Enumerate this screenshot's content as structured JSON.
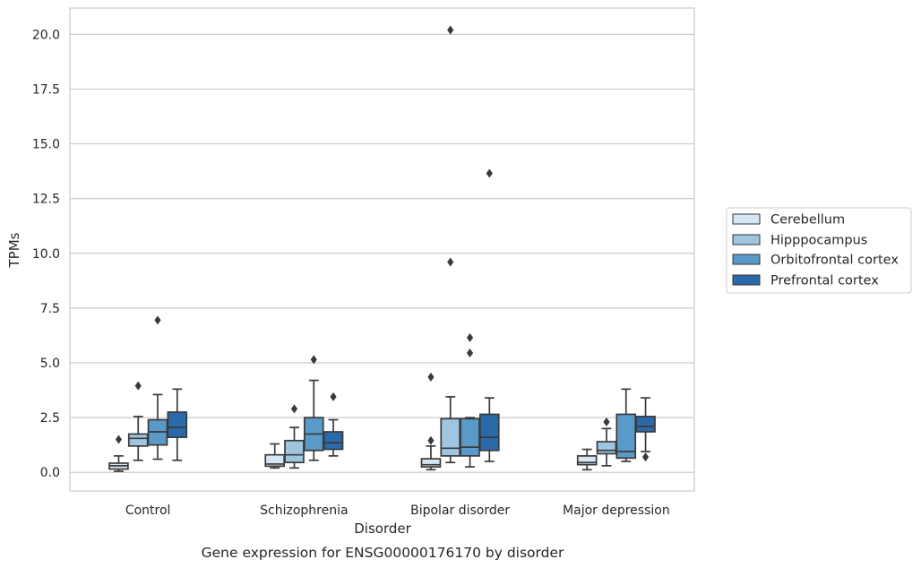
{
  "chart_data": {
    "type": "box",
    "caption": "Gene expression for ENSG00000176170 by disorder",
    "xlabel": "Disorder",
    "ylabel": "TPMs",
    "ylim": [
      -0.85,
      21.2
    ],
    "yticks": [
      0.0,
      2.5,
      5.0,
      7.5,
      10.0,
      12.5,
      15.0,
      17.5,
      20.0
    ],
    "ytick_labels": [
      "0.0",
      "2.5",
      "5.0",
      "7.5",
      "10.0",
      "12.5",
      "15.0",
      "17.5",
      "20.0"
    ],
    "grid": "horizontal",
    "legend_position": "right",
    "categories": [
      "Control",
      "Schizophrenia",
      "Bipolar disorder",
      "Major depression"
    ],
    "series": [
      {
        "name": "Cerebellum",
        "color": "#d7e6f4",
        "boxes": [
          {
            "whislo": 0.05,
            "q1": 0.15,
            "med": 0.3,
            "q3": 0.42,
            "whishi": 0.75,
            "fliers": [
              1.5
            ]
          },
          {
            "whislo": 0.2,
            "q1": 0.28,
            "med": 0.38,
            "q3": 0.8,
            "whishi": 1.3,
            "fliers": []
          },
          {
            "whislo": 0.12,
            "q1": 0.25,
            "med": 0.35,
            "q3": 0.62,
            "whishi": 1.2,
            "fliers": [
              1.45,
              4.35
            ]
          },
          {
            "whislo": 0.12,
            "q1": 0.35,
            "med": 0.45,
            "q3": 0.75,
            "whishi": 1.05,
            "fliers": []
          }
        ]
      },
      {
        "name": "Hipppocampus",
        "color": "#a0c5e0",
        "boxes": [
          {
            "whislo": 0.55,
            "q1": 1.2,
            "med": 1.55,
            "q3": 1.75,
            "whishi": 2.55,
            "fliers": [
              3.95
            ]
          },
          {
            "whislo": 0.2,
            "q1": 0.45,
            "med": 0.8,
            "q3": 1.45,
            "whishi": 2.05,
            "fliers": [
              2.9
            ]
          },
          {
            "whislo": 0.45,
            "q1": 0.75,
            "med": 1.1,
            "q3": 2.45,
            "whishi": 3.45,
            "fliers": [
              9.6,
              20.2
            ]
          },
          {
            "whislo": 0.3,
            "q1": 0.85,
            "med": 1.0,
            "q3": 1.4,
            "whishi": 2.0,
            "fliers": [
              2.3
            ]
          }
        ]
      },
      {
        "name": "Orbitofrontal cortex",
        "color": "#5a9ac9",
        "boxes": [
          {
            "whislo": 0.6,
            "q1": 1.25,
            "med": 1.85,
            "q3": 2.4,
            "whishi": 3.55,
            "fliers": [
              6.95
            ]
          },
          {
            "whislo": 0.55,
            "q1": 1.0,
            "med": 1.75,
            "q3": 2.5,
            "whishi": 4.2,
            "fliers": [
              5.15
            ]
          },
          {
            "whislo": 0.25,
            "q1": 0.75,
            "med": 1.15,
            "q3": 2.45,
            "whishi": 2.5,
            "fliers": [
              5.45,
              6.15
            ]
          },
          {
            "whislo": 0.5,
            "q1": 0.65,
            "med": 0.95,
            "q3": 2.65,
            "whishi": 3.8,
            "fliers": []
          }
        ]
      },
      {
        "name": "Prefrontal cortex",
        "color": "#2a6aaa",
        "boxes": [
          {
            "whislo": 0.55,
            "q1": 1.6,
            "med": 2.05,
            "q3": 2.75,
            "whishi": 3.8,
            "fliers": []
          },
          {
            "whislo": 0.75,
            "q1": 1.05,
            "med": 1.35,
            "q3": 1.85,
            "whishi": 2.4,
            "fliers": [
              3.45
            ]
          },
          {
            "whislo": 0.5,
            "q1": 1.0,
            "med": 1.6,
            "q3": 2.65,
            "whishi": 3.4,
            "fliers": [
              13.65
            ]
          },
          {
            "whislo": 0.95,
            "q1": 1.85,
            "med": 2.1,
            "q3": 2.55,
            "whishi": 3.4,
            "fliers": [
              0.7
            ]
          }
        ]
      }
    ]
  }
}
